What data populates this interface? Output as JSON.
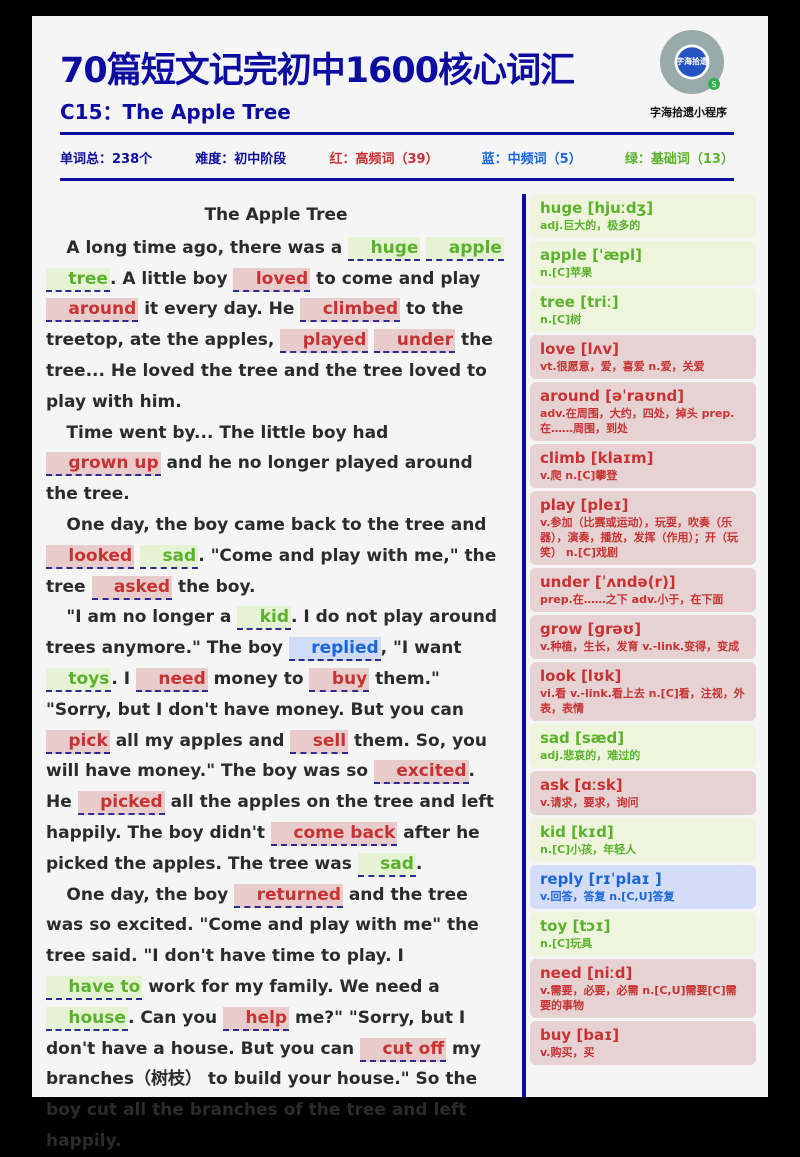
{
  "header": {
    "title": "70篇短文记完初中1600核心词汇",
    "subtitle": "C15：The Apple Tree",
    "qr_label": "字海拾遗",
    "qr_caption": "字海拾遗小程序",
    "qr_badge": "S"
  },
  "stats": {
    "total": "单词总：238个",
    "level": "难度：初中阶段",
    "red": "红：高频词（39）",
    "blue": "蓝：中频词（5）",
    "green": "绿：基础词（13）"
  },
  "colors": {
    "title_blue": "#0c0ca0",
    "high_freq_red": "#c83232",
    "mid_freq_blue": "#1a66d8",
    "basic_green": "#5ab22c"
  },
  "article": {
    "title": "The Apple Tree",
    "p1": {
      "t1": "A long time ago, there was a ",
      "k1": "huge",
      "k2": "apple",
      "k3": "tree",
      "t2": ". A little boy ",
      "k4": "loved",
      "t3": " to come and play ",
      "k5": "around",
      "t4": " it every day. He ",
      "k6": "climbed",
      "t5": " to the treetop, ate the apples, ",
      "k7": "played",
      "k8": "under",
      "t6": " the tree... He loved the tree and the tree loved to play with him."
    },
    "p2": {
      "t1": "Time went by... The little boy had ",
      "k1": "grown up",
      "t2": " and he no longer played around the tree."
    },
    "p3": {
      "t1": "One day, the boy came back to the tree and ",
      "k1": "looked",
      "k2": "sad",
      "t2": ". \"Come and play with me,\" the tree ",
      "k3": "asked",
      "t3": " the boy."
    },
    "p4": {
      "t1": "\"I am no longer a ",
      "k1": "kid",
      "t2": ". I do not play around trees anymore.\" The boy ",
      "k2": "replied",
      "t3": ", \"I want ",
      "k3": "toys",
      "t4": ". I ",
      "k4": "need",
      "t5": " money to ",
      "k5": "buy",
      "t6": " them.\" \"Sorry, but I don't have money. But you can ",
      "k6": "pick",
      "t7": " all my apples and ",
      "k7": "sell",
      "t8": " them. So, you will have money.\" The boy was so ",
      "k8": "excited",
      "t9": ". He ",
      "k9": "picked",
      "t10": " all the apples on the tree and left happily. The boy didn't ",
      "k10": "come back",
      "t11": " after he picked the apples. The tree was ",
      "k11": "sad",
      "t12": "."
    },
    "p5": {
      "t1": "One day, the boy ",
      "k1": "returned",
      "t2": " and the tree was so excited. \"Come and play with me\" the tree said. \"I don't have time to play. I ",
      "k2": "have to",
      "t3": " work for my family. We need a ",
      "k3": "house",
      "t4": ". Can you ",
      "k4": "help",
      "t5": " me?\" \"Sorry, but I don't have a house. But you can ",
      "k5": "cut off",
      "t6": " my branches（树枝） to build your house.\" So the boy cut all the branches of the tree and left happily."
    }
  },
  "words": [
    {
      "head": "huge [hjuːdʒ]",
      "def": "adj.巨大的，极多的",
      "color": "green"
    },
    {
      "head": "apple ['æpl]",
      "def": "n.[C]苹果",
      "color": "green"
    },
    {
      "head": "tree [triː]",
      "def": "n.[C]树",
      "color": "green"
    },
    {
      "head": "love [lʌv]",
      "def": "vt.很愿意，爱，喜爱 n.爱，关爱",
      "color": "red"
    },
    {
      "head": "around [əˈraʊnd]",
      "def": "adv.在周围，大约，四处，掉头 prep.在……周围，到处",
      "color": "red"
    },
    {
      "head": "climb [klaɪm]",
      "def": "v.爬 n.[C]攀登",
      "color": "red"
    },
    {
      "head": "play [pleɪ]",
      "def": "v.参加（比赛或运动），玩耍，吹奏（乐器），演奏，播放，发挥（作用）；开（玩笑） n.[C]戏剧",
      "color": "red"
    },
    {
      "head": "under [ˈʌndə(r)]",
      "def": "prep.在……之下 adv.小于，在下面",
      "color": "red"
    },
    {
      "head": "grow [ɡrəʊ]",
      "def": "v.种植，生长，发育 v.-link.变得，变成",
      "color": "red"
    },
    {
      "head": "look [lʊk]",
      "def": "vi.看 v.-link.看上去 n.[C]看，注视，外表，表情",
      "color": "red"
    },
    {
      "head": "sad [sæd]",
      "def": "adj.悲哀的，难过的",
      "color": "green"
    },
    {
      "head": "ask [ɑːsk]",
      "def": "v.请求，要求，询问",
      "color": "red"
    },
    {
      "head": "kid [kɪd]",
      "def": "n.[C]小孩，年轻人",
      "color": "green"
    },
    {
      "head": "reply [rɪˈplaɪ ]",
      "def": "v.回答，答复 n.[C,U]答复",
      "color": "blue"
    },
    {
      "head": "toy [tɔɪ]",
      "def": "n.[C]玩具",
      "color": "green"
    },
    {
      "head": "need [niːd]",
      "def": "v.需要，必要，必需 n.[C,U]需要[C]需要的事物",
      "color": "red"
    },
    {
      "head": "buy [baɪ]",
      "def": "v.购买，买",
      "color": "red"
    }
  ]
}
